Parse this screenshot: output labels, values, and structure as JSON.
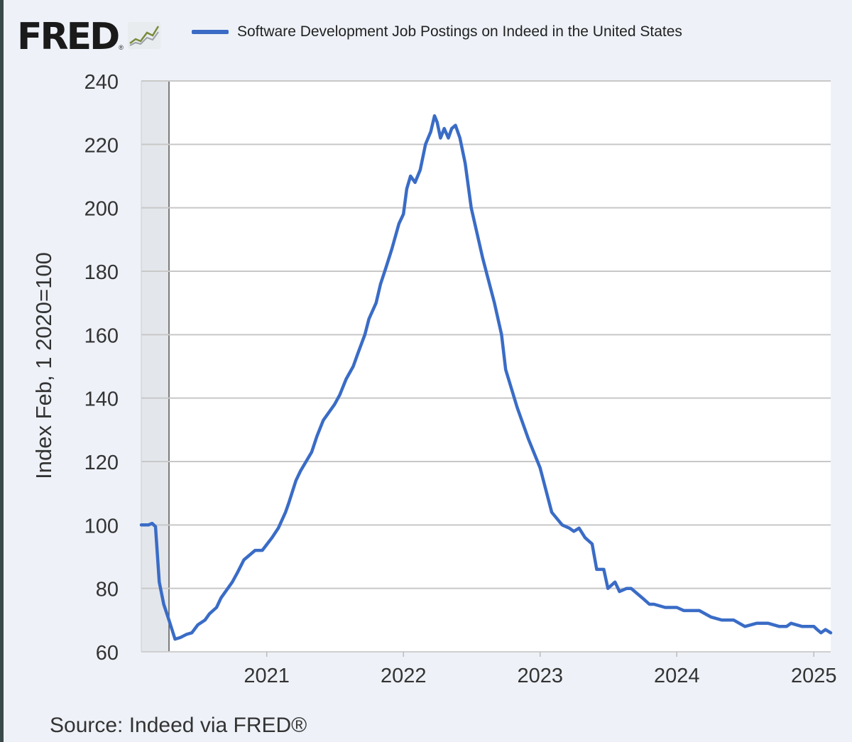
{
  "header": {
    "logo_text": "FRED",
    "logo_reg": "®",
    "logo_icon": "line-chart-icon"
  },
  "colors": {
    "series": "#3a6cc6",
    "grid": "#c8c8c8",
    "recession_shade": "#e3e6eb",
    "plot_background": "#ffffff",
    "page_background": "#eef2f8"
  },
  "chart_data": {
    "type": "line",
    "title": "",
    "legend": [
      "Software Development Job Postings on Indeed in the United States"
    ],
    "ylabel": "Index Feb, 1 2020=100",
    "xlabel": "",
    "source": "Source: Indeed via FRED®",
    "ylim": [
      60,
      240
    ],
    "xlim": [
      "2020-02-01",
      "2025-02-15"
    ],
    "yticks": [
      60,
      80,
      100,
      120,
      140,
      160,
      180,
      200,
      220,
      240
    ],
    "xticks": [
      "2021",
      "2022",
      "2023",
      "2024",
      "2025"
    ],
    "grid": true,
    "legend_position": "top",
    "shaded_regions": [
      {
        "start": "2020-02-01",
        "end": "2020-04-15",
        "label": "recession"
      }
    ],
    "series": [
      {
        "name": "Software Development Job Postings on Indeed in the United States",
        "x": [
          "2020-02-01",
          "2020-02-20",
          "2020-03-01",
          "2020-03-10",
          "2020-03-20",
          "2020-04-01",
          "2020-04-15",
          "2020-05-01",
          "2020-05-15",
          "2020-06-01",
          "2020-06-15",
          "2020-07-01",
          "2020-07-20",
          "2020-08-01",
          "2020-08-20",
          "2020-09-01",
          "2020-10-01",
          "2020-10-15",
          "2020-11-01",
          "2020-12-01",
          "2020-12-20",
          "2021-01-15",
          "2021-02-01",
          "2021-02-20",
          "2021-03-01",
          "2021-03-20",
          "2021-04-01",
          "2021-05-01",
          "2021-05-15",
          "2021-06-01",
          "2021-07-01",
          "2021-07-15",
          "2021-08-01",
          "2021-08-20",
          "2021-09-01",
          "2021-09-20",
          "2021-10-01",
          "2021-10-20",
          "2021-11-01",
          "2021-11-15",
          "2021-12-01",
          "2021-12-20",
          "2022-01-01",
          "2022-01-10",
          "2022-01-20",
          "2022-02-01",
          "2022-02-15",
          "2022-03-01",
          "2022-03-15",
          "2022-03-25",
          "2022-04-01",
          "2022-04-10",
          "2022-04-20",
          "2022-05-01",
          "2022-05-10",
          "2022-05-20",
          "2022-06-01",
          "2022-06-15",
          "2022-07-01",
          "2022-08-01",
          "2022-09-01",
          "2022-09-20",
          "2022-10-01",
          "2022-11-01",
          "2022-12-01",
          "2023-01-01",
          "2023-02-01",
          "2023-03-01",
          "2023-03-20",
          "2023-04-01",
          "2023-04-15",
          "2023-05-01",
          "2023-05-20",
          "2023-06-01",
          "2023-06-20",
          "2023-07-01",
          "2023-07-20",
          "2023-08-01",
          "2023-08-20",
          "2023-09-01",
          "2023-10-01",
          "2023-10-20",
          "2023-11-01",
          "2023-12-01",
          "2024-01-01",
          "2024-01-20",
          "2024-02-01",
          "2024-03-01",
          "2024-04-01",
          "2024-05-01",
          "2024-05-20",
          "2024-06-01",
          "2024-07-01",
          "2024-08-01",
          "2024-09-01",
          "2024-10-01",
          "2024-10-20",
          "2024-11-01",
          "2024-12-01",
          "2025-01-01",
          "2025-01-10",
          "2025-01-20",
          "2025-02-01",
          "2025-02-15"
        ],
        "y": [
          100,
          100,
          100.5,
          99.5,
          82,
          75,
          70,
          64,
          64.5,
          65.5,
          66,
          68.5,
          70,
          72,
          74,
          77,
          82,
          85,
          89,
          92,
          92,
          96,
          99,
          104,
          107,
          114,
          117,
          123,
          128,
          133,
          138,
          141,
          146,
          150,
          154,
          160,
          165,
          170,
          176,
          181,
          187,
          195,
          198,
          206,
          210,
          208,
          212,
          220,
          224,
          229,
          227,
          222,
          225,
          222,
          225,
          226,
          222,
          214,
          200,
          184,
          170,
          160,
          149,
          137,
          127,
          118,
          104,
          100,
          99,
          98,
          99,
          96,
          94,
          86,
          86,
          80,
          82,
          79,
          80,
          80,
          77,
          75,
          75,
          74,
          74,
          73,
          73,
          73,
          71,
          70,
          70,
          70,
          68,
          69,
          69,
          68,
          68,
          69,
          68,
          68,
          67,
          66,
          67,
          66
        ]
      }
    ]
  }
}
